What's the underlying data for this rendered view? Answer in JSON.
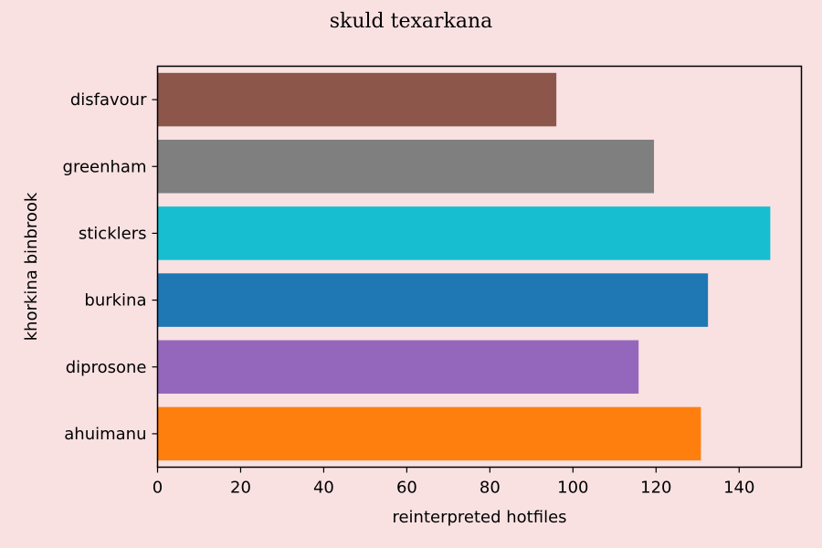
{
  "chart_data": {
    "type": "bar",
    "orientation": "horizontal",
    "title": "skuld texarkana",
    "xlabel": "reinterpreted hotfiles",
    "ylabel": "khorkina binbrook",
    "categories": [
      "disfavour",
      "greenham",
      "sticklers",
      "burkina",
      "diprosone",
      "ahuimanu"
    ],
    "values": [
      96,
      119.5,
      147.5,
      132.5,
      115.8,
      130.8
    ],
    "colors": [
      "#8c564b",
      "#7f7f7f",
      "#17becf",
      "#1f77b4",
      "#9467bd",
      "#ff7f0e"
    ],
    "xlim": [
      0,
      155
    ],
    "xticks": [
      "0",
      "20",
      "40",
      "60",
      "80",
      "100",
      "120",
      "140"
    ],
    "grid": false,
    "background": "#f9e1e2"
  }
}
